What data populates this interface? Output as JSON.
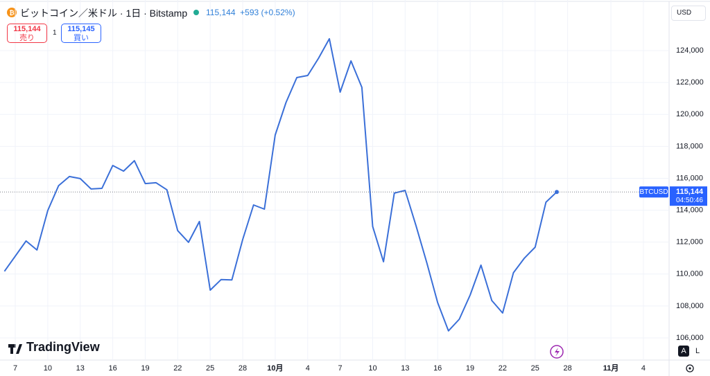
{
  "header": {
    "title": "ビットコイン／米ドル · 1日 · Bitstamp",
    "price": "115,144",
    "change": "+593 (+0.52%)",
    "sell_price": "115,144",
    "sell_label": "売り",
    "quantity": "1",
    "buy_price": "115,145",
    "buy_label": "買い",
    "currency": "USD",
    "logo": "TradingView",
    "auto_button": "A",
    "log_button": "L"
  },
  "chart_data": {
    "type": "line",
    "categories": [
      null,
      "7",
      null,
      null,
      "10",
      null,
      null,
      "13",
      null,
      null,
      "16",
      null,
      null,
      "19",
      null,
      null,
      "22",
      null,
      null,
      "25",
      null,
      null,
      "28",
      null,
      null,
      "10月",
      null,
      null,
      "4",
      null,
      null,
      "7",
      null,
      null,
      "10",
      null,
      null,
      "13",
      null,
      null,
      "16",
      null,
      null,
      "19",
      null,
      null,
      "22",
      null,
      null,
      "25",
      null,
      null,
      "28",
      null,
      null,
      null,
      "11月",
      null,
      null,
      "4",
      null
    ],
    "series": [
      {
        "name": "BTCUSD",
        "color": "#3a6fd8",
        "values": [
          110170,
          111120,
          112070,
          111510,
          113980,
          115540,
          116110,
          115980,
          115330,
          115370,
          116800,
          116450,
          117100,
          115670,
          115720,
          115280,
          112720,
          111990,
          113290,
          108990,
          109650,
          109630,
          112160,
          114330,
          114070,
          118710,
          120750,
          122310,
          122440,
          123520,
          124740,
          121400,
          123350,
          121700,
          112980,
          110770,
          115070,
          115240,
          113030,
          110700,
          108210,
          106440,
          107170,
          108690,
          110560,
          108340,
          107560,
          110080,
          110990,
          111680,
          114500,
          115144,
          null,
          null,
          null,
          null,
          null,
          null,
          null,
          null,
          null
        ]
      }
    ],
    "last_price": {
      "symbol": "BTCUSD",
      "label": "115,144",
      "countdown": "04:50:46"
    },
    "ylim": [
      104610,
      127170
    ],
    "yticks": [
      {
        "value": 106000,
        "label": "106,000"
      },
      {
        "value": 108000,
        "label": "108,000"
      },
      {
        "value": 110000,
        "label": "110,000"
      },
      {
        "value": 112000,
        "label": "112,000"
      },
      {
        "value": 114000,
        "label": "114,000"
      },
      {
        "value": 116000,
        "label": "116,000"
      },
      {
        "value": 118000,
        "label": "118,000"
      },
      {
        "value": 120000,
        "label": "120,000"
      },
      {
        "value": 122000,
        "label": "122,000"
      },
      {
        "value": 124000,
        "label": "124,000"
      }
    ],
    "grid": true
  }
}
